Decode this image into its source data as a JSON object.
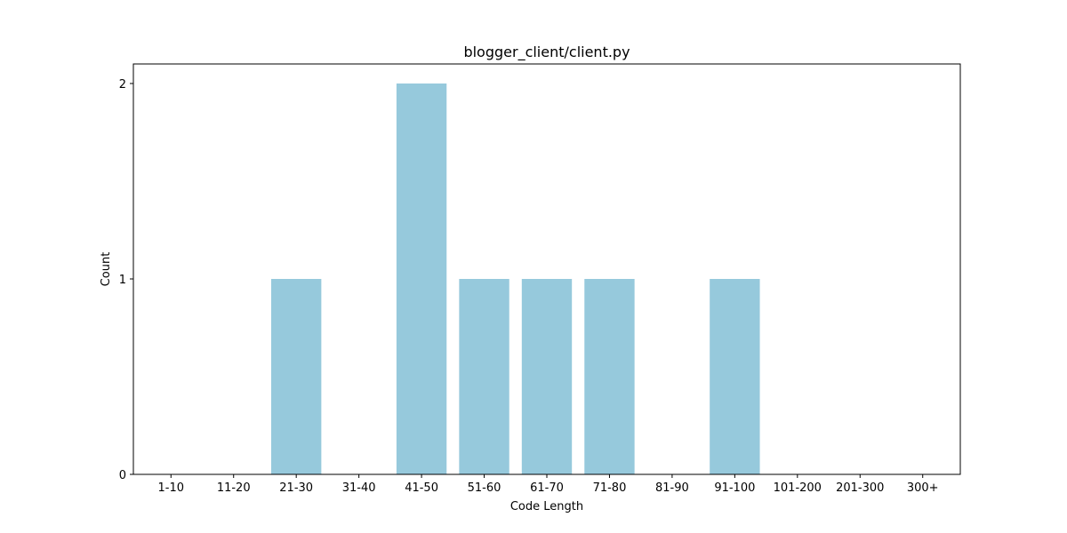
{
  "chart_data": {
    "type": "bar",
    "title": "blogger_client/client.py",
    "xlabel": "Code Length",
    "ylabel": "Count",
    "categories": [
      "1-10",
      "11-20",
      "21-30",
      "31-40",
      "41-50",
      "51-60",
      "61-70",
      "71-80",
      "81-90",
      "91-100",
      "101-200",
      "201-300",
      "300+"
    ],
    "values": [
      0,
      0,
      1,
      0,
      2,
      1,
      1,
      1,
      0,
      1,
      0,
      0,
      0
    ],
    "yticks": [
      "0",
      "1",
      "2"
    ],
    "ylim": [
      0,
      2.1
    ],
    "grid": false,
    "legend": "none",
    "bar_color": "#96c9dc"
  }
}
